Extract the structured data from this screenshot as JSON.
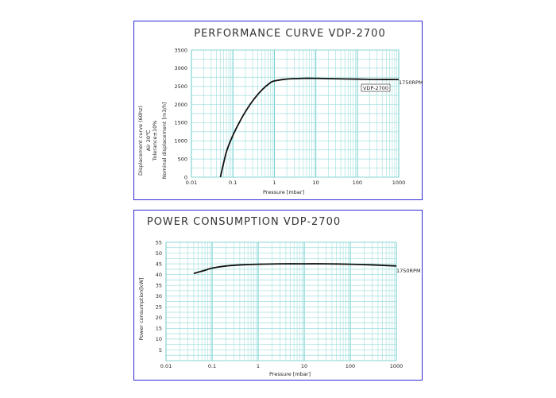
{
  "chart_data": [
    {
      "type": "line",
      "title": "PERFORMANCE CURVE VDP-2700",
      "xlabel": "Pressure [mbar]",
      "ylabel_lines": [
        "Displacement curve (60hz)",
        "Air 20℃",
        "Tolerance±10%",
        "Nominal displacement [m3/h]"
      ],
      "x_scale": "log",
      "xlim": [
        0.01,
        1000
      ],
      "x_ticks": [
        "0.01",
        "0.1",
        "1",
        "10",
        "100",
        "1000"
      ],
      "ylim": [
        0,
        3500
      ],
      "y_ticks": [
        "0",
        "500",
        "1000",
        "1500",
        "2000",
        "2500",
        "3000",
        "3500"
      ],
      "grid": true,
      "series": [
        {
          "name": "1750RPM",
          "x": [
            0.05,
            0.07,
            0.1,
            0.15,
            0.2,
            0.3,
            0.5,
            0.8,
            1,
            2,
            5,
            10,
            30,
            100,
            300,
            1000
          ],
          "y": [
            0,
            700,
            1150,
            1550,
            1800,
            2100,
            2400,
            2600,
            2650,
            2700,
            2720,
            2720,
            2710,
            2700,
            2690,
            2690
          ]
        }
      ],
      "legend_box": "VDP-2700",
      "end_label": "1750RPM"
    },
    {
      "type": "line",
      "title": "POWER CONSUMPTION VDP-2700",
      "xlabel": "Pressure [mbar]",
      "ylabel": "Power consumption[kW]",
      "x_scale": "log",
      "xlim": [
        0.01,
        1000
      ],
      "x_ticks": [
        "0.01",
        "0.1",
        "1",
        "10",
        "100",
        "1000"
      ],
      "ylim": [
        0,
        55
      ],
      "y_ticks": [
        "5",
        "10",
        "15",
        "20",
        "25",
        "30",
        "35",
        "40",
        "45",
        "50",
        "55"
      ],
      "grid": true,
      "series": [
        {
          "name": "1750RPM",
          "x": [
            0.04,
            0.07,
            0.1,
            0.2,
            0.5,
            1,
            3,
            10,
            30,
            100,
            300,
            1000
          ],
          "y": [
            40.5,
            42,
            43,
            44,
            44.6,
            44.8,
            45,
            45,
            45,
            44.8,
            44.5,
            44
          ]
        }
      ],
      "end_label": "1750RPM"
    }
  ]
}
